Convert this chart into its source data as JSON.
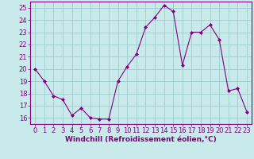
{
  "x": [
    0,
    1,
    2,
    3,
    4,
    5,
    6,
    7,
    8,
    9,
    10,
    11,
    12,
    13,
    14,
    15,
    16,
    17,
    18,
    19,
    20,
    21,
    22,
    23
  ],
  "y": [
    20.0,
    19.0,
    17.8,
    17.5,
    16.2,
    16.8,
    16.0,
    15.9,
    15.9,
    19.0,
    20.2,
    21.2,
    23.4,
    24.2,
    25.2,
    24.7,
    20.3,
    23.0,
    23.0,
    23.6,
    22.4,
    18.2,
    18.4,
    16.5
  ],
  "line_color": "#800080",
  "marker": "D",
  "marker_size": 2,
  "bg_color": "#c8eaea",
  "grid_color": "#9ecece",
  "xlabel": "Windchill (Refroidissement éolien,°C)",
  "xlim": [
    -0.5,
    23.5
  ],
  "ylim": [
    15.5,
    25.5
  ],
  "yticks": [
    16,
    17,
    18,
    19,
    20,
    21,
    22,
    23,
    24,
    25
  ],
  "xticks": [
    0,
    1,
    2,
    3,
    4,
    5,
    6,
    7,
    8,
    9,
    10,
    11,
    12,
    13,
    14,
    15,
    16,
    17,
    18,
    19,
    20,
    21,
    22,
    23
  ],
  "line_color_rgb": "#800080",
  "tick_labelsize": 6,
  "xlabel_fontsize": 6.5,
  "xlabel_color": "#800080",
  "tick_color": "#800080",
  "spine_color": "#800080"
}
